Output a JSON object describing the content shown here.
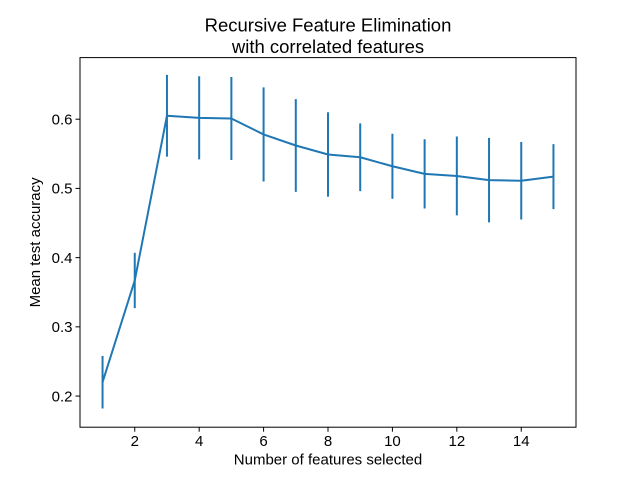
{
  "chart_data": {
    "type": "line",
    "title": "Recursive Feature Elimination\nwith correlated features",
    "title_line1": "Recursive Feature Elimination",
    "title_line2": "with correlated features",
    "xlabel": "Number of features selected",
    "ylabel": "Mean test accuracy",
    "x": [
      1,
      2,
      3,
      4,
      5,
      6,
      7,
      8,
      9,
      10,
      11,
      12,
      13,
      14,
      15
    ],
    "series": [
      {
        "name": "mean_test_accuracy",
        "values": [
          0.22,
          0.367,
          0.605,
          0.602,
          0.601,
          0.578,
          0.562,
          0.549,
          0.545,
          0.532,
          0.521,
          0.518,
          0.512,
          0.511,
          0.517
        ],
        "errors": [
          0.038,
          0.04,
          0.059,
          0.06,
          0.06,
          0.068,
          0.067,
          0.061,
          0.049,
          0.047,
          0.05,
          0.057,
          0.061,
          0.056,
          0.047
        ]
      }
    ],
    "xticks": [
      2,
      4,
      6,
      8,
      10,
      12,
      14
    ],
    "yticks": [
      0.2,
      0.3,
      0.4,
      0.5,
      0.6
    ],
    "xlim": [
      0.3,
      15.7
    ],
    "ylim": [
      0.155,
      0.689
    ],
    "grid": false,
    "legend": null,
    "error_bar_caps": false,
    "line_color": "#1f77b4",
    "axis_color": "#000000",
    "background_color": "#ffffff"
  }
}
